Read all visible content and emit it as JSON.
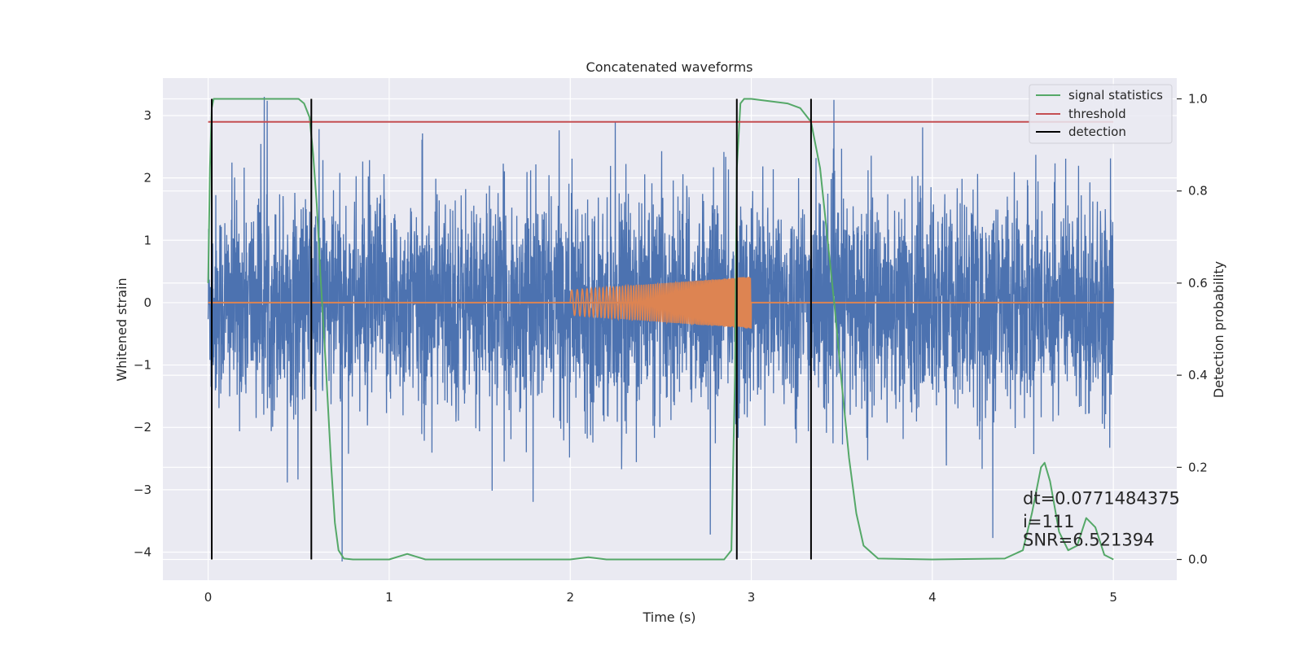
{
  "chart_data": {
    "type": "line",
    "title": "Concatenated waveforms",
    "xlabel": "Time (s)",
    "ylabel": "Whitened strain",
    "ylabel_right": "Detection probability",
    "xlim": [
      -0.25,
      5.35
    ],
    "ylim": [
      -4.45,
      3.6
    ],
    "ylim_right": [
      -0.045,
      1.045
    ],
    "x_ticks": [
      0,
      1,
      2,
      3,
      4,
      5
    ],
    "y_ticks": [
      -4,
      -3,
      -2,
      -1,
      0,
      1,
      2,
      3
    ],
    "y_ticks_right": [
      0.0,
      0.2,
      0.4,
      0.6,
      0.8,
      1.0
    ],
    "grid": true,
    "legend_position": "top-right",
    "colors": {
      "background": "#eaeaf2",
      "grid": "#ffffff",
      "strain": "#4c72b0",
      "injection": "#dd8452",
      "signal_statistics": "#55a868",
      "threshold": "#c44e52",
      "detection": "#000000"
    },
    "strain": {
      "x_range": [
        0,
        5
      ],
      "envelope": [
        -1.6,
        1.8
      ],
      "peak_min": -4.15,
      "peak_max": 3.3
    },
    "injection": {
      "x_range": [
        2.0,
        3.0
      ],
      "start_amplitude": 0.2,
      "end_amplitude": 0.42
    },
    "series": [
      {
        "name": "signal statistics",
        "axis": "right",
        "x": [
          0.0,
          0.01,
          0.02,
          0.03,
          0.05,
          0.1,
          0.3,
          0.5,
          0.53,
          0.56,
          0.58,
          0.6,
          0.62,
          0.65,
          0.68,
          0.7,
          0.72,
          0.75,
          0.8,
          1.0,
          1.1,
          1.2,
          2.0,
          2.1,
          2.2,
          2.85,
          2.89,
          2.91,
          2.92,
          2.94,
          2.96,
          3.0,
          3.2,
          3.27,
          3.33,
          3.38,
          3.42,
          3.46,
          3.5,
          3.54,
          3.58,
          3.62,
          3.7,
          4.0,
          4.4,
          4.5,
          4.55,
          4.6,
          4.62,
          4.65,
          4.7,
          4.75,
          4.8,
          4.85,
          4.9,
          4.95,
          5.0
        ],
        "y": [
          0.6,
          0.85,
          0.98,
          1.0,
          1.0,
          1.0,
          1.0,
          1.0,
          0.99,
          0.96,
          0.88,
          0.77,
          0.62,
          0.42,
          0.2,
          0.08,
          0.02,
          0.002,
          0.0,
          0.0,
          0.012,
          0.0,
          0.0,
          0.005,
          0.0,
          0.0,
          0.02,
          0.4,
          0.85,
          0.99,
          1.0,
          1.0,
          0.99,
          0.98,
          0.95,
          0.85,
          0.7,
          0.55,
          0.38,
          0.22,
          0.1,
          0.03,
          0.002,
          0.0,
          0.002,
          0.02,
          0.1,
          0.2,
          0.21,
          0.17,
          0.06,
          0.02,
          0.03,
          0.09,
          0.07,
          0.01,
          0.0
        ]
      },
      {
        "name": "threshold",
        "axis": "right",
        "x": [
          0,
          5
        ],
        "y": [
          0.95,
          0.95
        ]
      },
      {
        "name": "detection",
        "axis": "right",
        "x_lines": [
          0.02,
          0.57,
          2.92,
          3.33
        ],
        "y_range": [
          0.0,
          1.0
        ]
      }
    ],
    "annotations": [
      {
        "text": "dt=0.0771484375",
        "x": 4.5,
        "y": 0.12
      },
      {
        "text": " i=111",
        "x": 4.5,
        "y": 0.07
      },
      {
        "text": "SNR=6.521394",
        "x": 4.5,
        "y": 0.03
      }
    ]
  }
}
